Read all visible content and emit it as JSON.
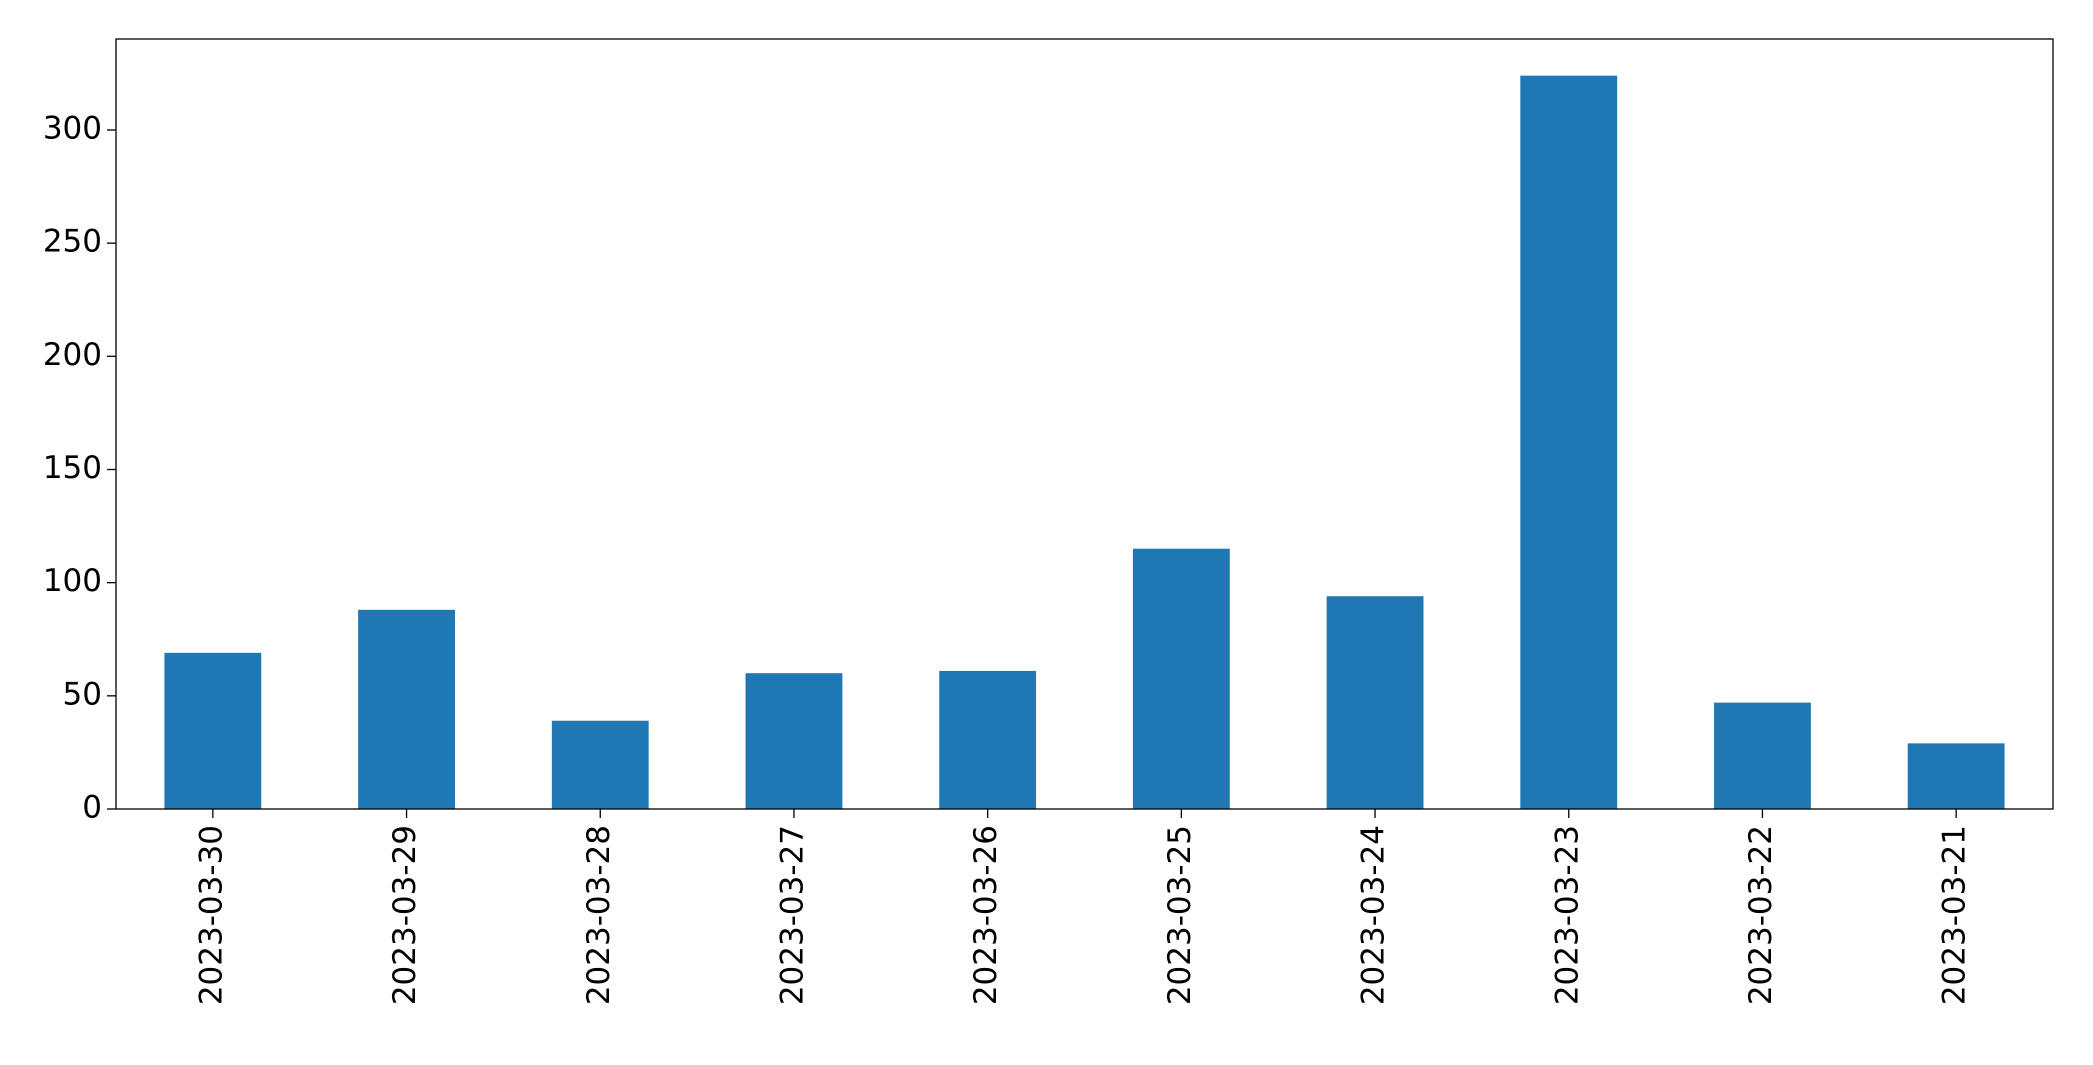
{
  "chart_data": {
    "type": "bar",
    "categories": [
      "2023-03-30",
      "2023-03-29",
      "2023-03-28",
      "2023-03-27",
      "2023-03-26",
      "2023-03-25",
      "2023-03-24",
      "2023-03-23",
      "2023-03-22",
      "2023-03-21"
    ],
    "values": [
      69,
      88,
      39,
      60,
      61,
      115,
      94,
      324,
      47,
      29
    ],
    "color": "#1f77b4",
    "ylim": [
      0,
      340.2
    ],
    "yticks": [
      0,
      50,
      100,
      150,
      200,
      250,
      300
    ],
    "grid": false
  }
}
